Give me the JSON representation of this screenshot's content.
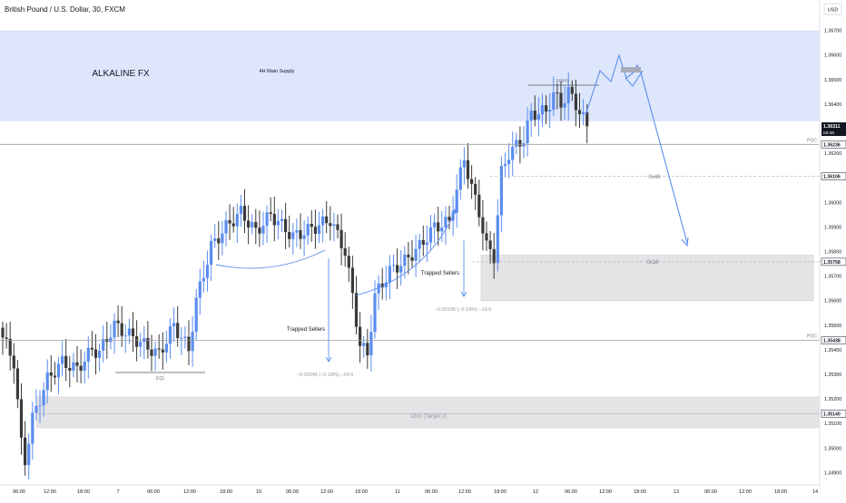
{
  "header": {
    "title": "British Pound / U.S. Dollar, 30, FXCM",
    "currency": "USD"
  },
  "colors": {
    "up": "#5b8def",
    "down": "#3a3a3a",
    "supply_zone": "#dde6fb",
    "demand_zone": "#e4e4e6",
    "arrow": "#5b8def",
    "poc_line": "#9e9e9e",
    "current_price_tag": "#131722"
  },
  "chart_data": {
    "type": "candlestick",
    "symbol": "GBPUSD",
    "timeframe": "30",
    "ylim": [
      1.3485,
      1.3675
    ],
    "y_ticks": [
      "1.36700",
      "1.36600",
      "1.36500",
      "1.36400",
      "1.36300",
      "1.36200",
      "1.36100",
      "1.36000",
      "1.35900",
      "1.35800",
      "1.35700",
      "1.35600",
      "1.35500",
      "1.35400",
      "1.35300",
      "1.35200",
      "1.35100",
      "1.35000",
      "1.34900"
    ],
    "x_ticks": [
      "06:00",
      "12:00",
      "18:00",
      "7",
      "06:00",
      "12:00",
      "18:00",
      "10",
      "06:00",
      "12:00",
      "18:00",
      "11",
      "06:00",
      "12:00",
      "18:00",
      "12",
      "06:00",
      "12:00",
      "18:00",
      "13",
      "06:00",
      "12:00",
      "18:00",
      "14"
    ],
    "price_tags": [
      {
        "label": "1.36311",
        "sub": "03:46",
        "price": 1.36311,
        "style": "current"
      },
      {
        "label": "1.36236",
        "price": 1.36236,
        "style": "poc"
      },
      {
        "label": "1.36106",
        "price": 1.36106,
        "style": "level"
      },
      {
        "label": "1.35758",
        "price": 1.35758,
        "style": "level"
      },
      {
        "label": "1.35438",
        "price": 1.35438,
        "style": "poc"
      },
      {
        "label": "1.35140",
        "price": 1.3514,
        "style": "level"
      }
    ],
    "key_points": [
      [
        0,
        1.3545
      ],
      [
        3,
        1.3535
      ],
      [
        5,
        1.3502
      ],
      [
        6,
        1.3495
      ],
      [
        8,
        1.3512
      ],
      [
        12,
        1.3528
      ],
      [
        16,
        1.3535
      ],
      [
        20,
        1.3532
      ],
      [
        24,
        1.354
      ],
      [
        26,
        1.3539
      ],
      [
        30,
        1.355
      ],
      [
        34,
        1.3546
      ],
      [
        38,
        1.3542
      ],
      [
        42,
        1.3538
      ],
      [
        46,
        1.355
      ],
      [
        50,
        1.354
      ],
      [
        52,
        1.356
      ],
      [
        56,
        1.3582
      ],
      [
        60,
        1.359
      ],
      [
        64,
        1.3596
      ],
      [
        68,
        1.3588
      ],
      [
        72,
        1.3595
      ],
      [
        78,
        1.3586
      ],
      [
        84,
        1.359
      ],
      [
        88,
        1.3593
      ],
      [
        92,
        1.358
      ],
      [
        94,
        1.3562
      ],
      [
        96,
        1.3542
      ],
      [
        98,
        1.3538
      ],
      [
        100,
        1.3562
      ],
      [
        104,
        1.3572
      ],
      [
        108,
        1.3576
      ],
      [
        112,
        1.3582
      ],
      [
        116,
        1.359
      ],
      [
        120,
        1.3592
      ],
      [
        124,
        1.3618
      ],
      [
        126,
        1.3606
      ],
      [
        128,
        1.3596
      ],
      [
        130,
        1.3582
      ],
      [
        132,
        1.3578
      ],
      [
        134,
        1.3612
      ],
      [
        136,
        1.362
      ],
      [
        140,
        1.3626
      ],
      [
        142,
        1.3636
      ],
      [
        146,
        1.3637
      ],
      [
        148,
        1.3644
      ],
      [
        150,
        1.364
      ],
      [
        152,
        1.3645
      ],
      [
        154,
        1.364
      ],
      [
        156,
        1.3634
      ],
      [
        157,
        1.3631
      ]
    ],
    "zones": [
      {
        "label": "4H Main Supply",
        "top": 1.367,
        "bottom": 1.3633,
        "kind": "supply"
      },
      {
        "label": "0x18",
        "top": 1.35785,
        "bottom": 1.356,
        "kind": "demand"
      },
      {
        "label": "18x0 (Target 2)",
        "top": 1.3521,
        "bottom": 1.3508,
        "kind": "demand"
      }
    ],
    "poc_levels": [
      1.36236,
      1.35438
    ],
    "annotations": {
      "brand": "ALKALINE FX",
      "eqh": "EQH's",
      "eql": "EQL",
      "trapped_sellers_1": "Trapped Sellers",
      "trapped_sellers_2": "Trapped Sellers",
      "measure_1": "−0.00246 (−0.18%) −24.6",
      "measure_2": "−0.00196 (−0.14%) −19.6",
      "label_0x46": "0x46",
      "poc_1": "POC",
      "poc_2": "POC"
    },
    "projection_path": [
      [
        "15:00",
        1.364
      ],
      [
        "16:00",
        1.3652
      ],
      [
        "16:40",
        1.3648
      ],
      [
        "17:20",
        1.3657
      ],
      [
        "17:50",
        1.3649
      ],
      [
        "18:20",
        1.3654
      ],
      [
        "18:50",
        1.3644
      ],
      [
        "13 00:00",
        1.358
      ]
    ]
  }
}
